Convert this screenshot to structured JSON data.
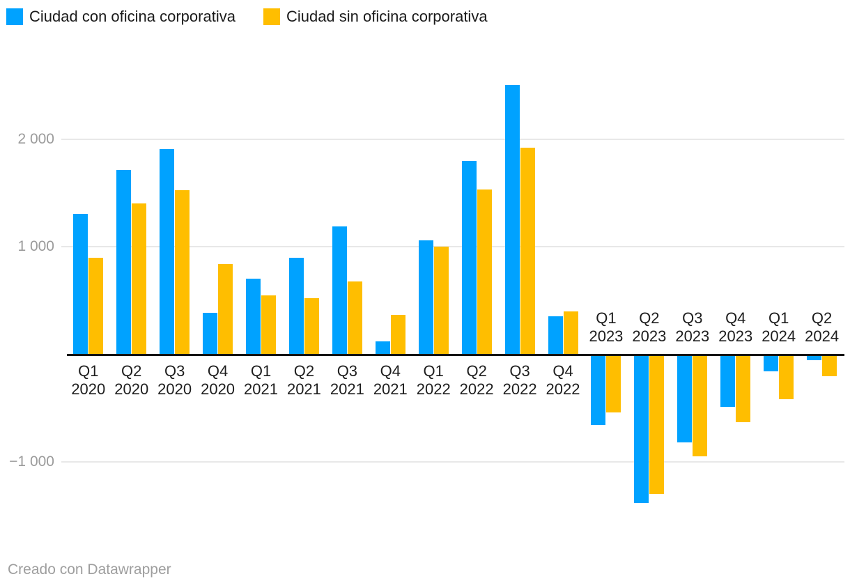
{
  "legend": {
    "position": "top-left",
    "items": [
      {
        "label": "Ciudad con oficina corporativa",
        "color": "#00a2ff"
      },
      {
        "label": "Ciudad sin oficina corporativa",
        "color": "#ffbe00"
      }
    ]
  },
  "footer": {
    "credit": "Creado con Datawrapper"
  },
  "chart_data": {
    "type": "bar",
    "grouped": true,
    "title": "",
    "xlabel": "",
    "ylabel": "",
    "grid": true,
    "legend_position": "top-left",
    "ylim": [
      -1450,
      2600
    ],
    "y_axis": {
      "ticks": [
        {
          "value": 2000,
          "label": "2 000"
        },
        {
          "value": 1000,
          "label": "1 000"
        },
        {
          "value": -1000,
          "label": "−1 000"
        }
      ]
    },
    "categories": [
      {
        "quarter": "Q1",
        "year": "2020"
      },
      {
        "quarter": "Q2",
        "year": "2020"
      },
      {
        "quarter": "Q3",
        "year": "2020"
      },
      {
        "quarter": "Q4",
        "year": "2020"
      },
      {
        "quarter": "Q1",
        "year": "2021"
      },
      {
        "quarter": "Q2",
        "year": "2021"
      },
      {
        "quarter": "Q3",
        "year": "2021"
      },
      {
        "quarter": "Q4",
        "year": "2021"
      },
      {
        "quarter": "Q1",
        "year": "2022"
      },
      {
        "quarter": "Q2",
        "year": "2022"
      },
      {
        "quarter": "Q3",
        "year": "2022"
      },
      {
        "quarter": "Q4",
        "year": "2022"
      },
      {
        "quarter": "Q1",
        "year": "2023"
      },
      {
        "quarter": "Q2",
        "year": "2023"
      },
      {
        "quarter": "Q3",
        "year": "2023"
      },
      {
        "quarter": "Q4",
        "year": "2023"
      },
      {
        "quarter": "Q1",
        "year": "2024"
      },
      {
        "quarter": "Q2",
        "year": "2024"
      }
    ],
    "series": [
      {
        "name": "Ciudad con oficina corporativa",
        "key": "con-oficina",
        "color": "#00a2ff",
        "values": [
          1305,
          1710,
          1905,
          385,
          700,
          900,
          1190,
          122,
          1060,
          1795,
          2505,
          355,
          -660,
          -1380,
          -822,
          -490,
          -160,
          -55
        ]
      },
      {
        "name": "Ciudad sin oficina corporativa",
        "key": "sin-oficina",
        "color": "#ffbe00",
        "values": [
          895,
          1400,
          1525,
          840,
          550,
          520,
          680,
          365,
          1000,
          1530,
          1920,
          398,
          -543,
          -1298,
          -950,
          -630,
          -415,
          -205
        ]
      }
    ]
  }
}
